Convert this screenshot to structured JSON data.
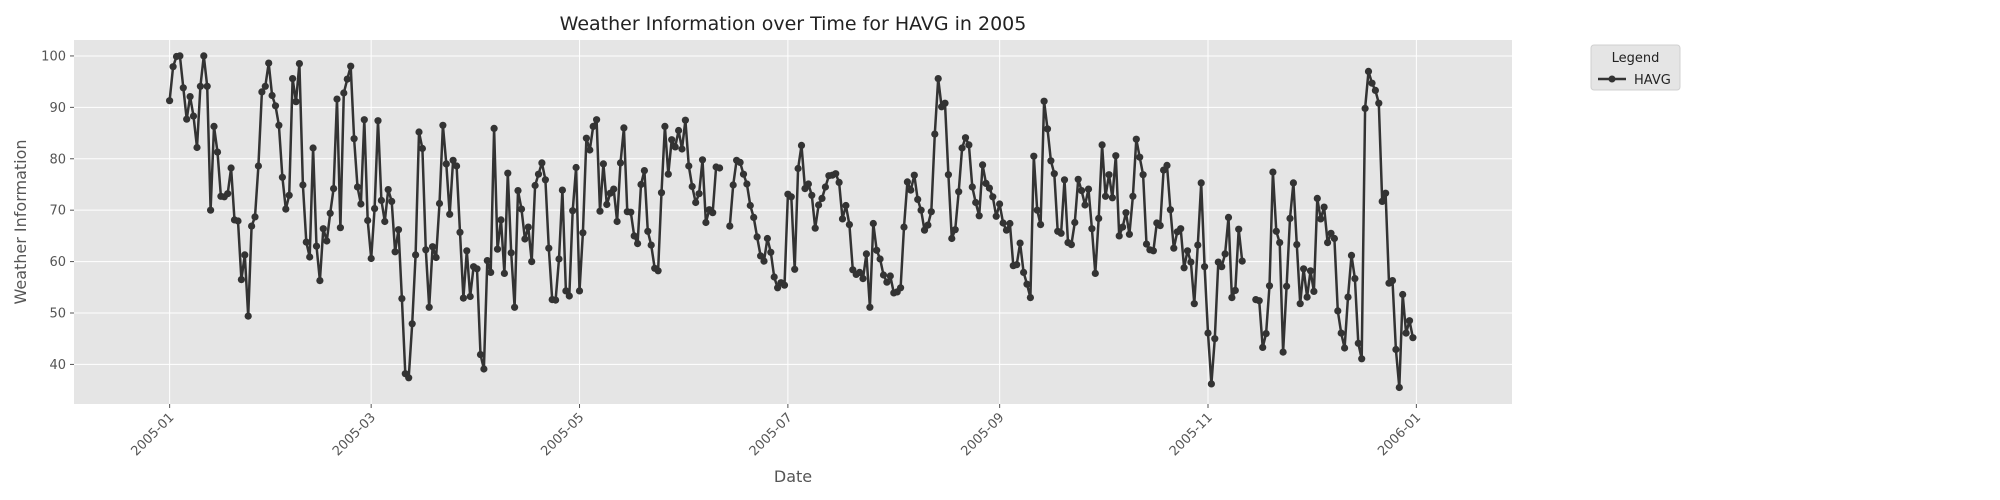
{
  "chart_data": {
    "type": "line",
    "title": "Weather Information over Time for HAVG in 2005",
    "xlabel": "Date",
    "ylabel": "Weather Information",
    "xlim": [
      "2004-12-04",
      "2006-01-29"
    ],
    "ylim": [
      32.3,
      103.1
    ],
    "x_ticks": [
      "2005-01",
      "2005-03",
      "2005-05",
      "2005-07",
      "2005-09",
      "2005-11",
      "2006-01"
    ],
    "y_ticks": [
      40,
      50,
      60,
      70,
      80,
      90,
      100
    ],
    "grid": true,
    "legend": {
      "title": "Legend",
      "placement": "outside-top-right"
    },
    "colors": {
      "line": "#333333",
      "plot_bg": "#e5e5e5",
      "grid": "#ffffff"
    },
    "series": [
      {
        "name": "HAVG",
        "start_date": "2005-01-01",
        "values": [
          91.3,
          97.9,
          99.9,
          100,
          93.8,
          87.7,
          92.1,
          88.3,
          82.2,
          94.1,
          100,
          94.1,
          70,
          86.3,
          81.3,
          72.7,
          72.6,
          73.2,
          78.2,
          68.1,
          67.9,
          56.5,
          61.3,
          49.4,
          66.9,
          68.7,
          78.6,
          93,
          94.1,
          98.6,
          92.3,
          90.3,
          86.5,
          76.4,
          70.2,
          72.9,
          95.6,
          91.1,
          98.5,
          74.9,
          63.8,
          60.9,
          82.1,
          63,
          56.3,
          66.4,
          64,
          69.4,
          74.2,
          91.6,
          66.6,
          92.8,
          95.5,
          98,
          83.9,
          74.5,
          71.2,
          87.6,
          68,
          60.6,
          70.3,
          87.4,
          71.9,
          67.8,
          74,
          71.7,
          61.9,
          66.2,
          52.8,
          38.2,
          37.4,
          47.9,
          61.3,
          85.2,
          82,
          62.3,
          51.1,
          62.9,
          60.8,
          71.3,
          86.5,
          79,
          69.2,
          79.7,
          78.6,
          65.7,
          52.9,
          62.1,
          53.2,
          59,
          58.6,
          41.9,
          39.1,
          60.2,
          57.9,
          85.9,
          62.4,
          68.1,
          57.7,
          77.2,
          61.7,
          51.1,
          73.8,
          70.2,
          64.4,
          66.7,
          60,
          74.8,
          77,
          79.2,
          75.9,
          62.6,
          52.6,
          52.5,
          60.5,
          73.9,
          54.3,
          53.3,
          69.9,
          78.3,
          54.3,
          65.6,
          84,
          81.7,
          86.3,
          87.6,
          69.8,
          79,
          71.1,
          73.3,
          74.1,
          67.8,
          79.2,
          86,
          69.7,
          69.6,
          65,
          63.5,
          75,
          77.7,
          65.9,
          63.2,
          58.7,
          58.2,
          73.4,
          86.3,
          77,
          83.7,
          82.3,
          85.5,
          81.9,
          87.5,
          78.6,
          74.6,
          71.5,
          73.2,
          79.8,
          67.6,
          70.1,
          69.5,
          78.4,
          78.2,
          null,
          null,
          66.9,
          74.9,
          79.7,
          79.3,
          77,
          75.1,
          70.9,
          68.6,
          64.8,
          61.1,
          60.1,
          64.5,
          61.8,
          57,
          54.9,
          55.9,
          55.4,
          73.1,
          72.6,
          58.5,
          78.1,
          82.6,
          74.2,
          75.1,
          72.9,
          66.5,
          71,
          72.3,
          74.5,
          76.7,
          76.8,
          77.1,
          75.4,
          68.3,
          70.9,
          67.2,
          58.4,
          57.5,
          57.9,
          56.7,
          61.5,
          51.1,
          67.4,
          62.2,
          60.5,
          57.4,
          56,
          57.2,
          53.9,
          54.1,
          54.9,
          66.7,
          75.5,
          73.9,
          76.8,
          72.1,
          70,
          66.1,
          67.1,
          69.7,
          84.8,
          95.6,
          90.1,
          90.8,
          76.9,
          64.5,
          66.2,
          73.6,
          82.1,
          84.1,
          82.7,
          74.5,
          71.5,
          68.9,
          78.8,
          75.2,
          74.3,
          72.6,
          68.8,
          71.2,
          67.5,
          66.1,
          67.4,
          59.2,
          59.4,
          63.6,
          57.9,
          55.6,
          53,
          80.5,
          70,
          67.2,
          91.2,
          85.8,
          79.6,
          77.1,
          65.9,
          65.5,
          75.9,
          63.7,
          63.3,
          67.6,
          76,
          73.8,
          71,
          74.1,
          66.4,
          57.7,
          68.4,
          82.7,
          72.7,
          76.9,
          72.4,
          80.6,
          65,
          66.7,
          69.5,
          65.3,
          72.7,
          83.8,
          80.3,
          76.9,
          63.4,
          62.3,
          62.1,
          67.5,
          67,
          77.8,
          78.7,
          70.1,
          62.6,
          65.8,
          66.4,
          58.8,
          62.1,
          59.9,
          51.8,
          63.2,
          75.3,
          59,
          46.1,
          36.2,
          45,
          59.9,
          59,
          61.5,
          68.6,
          53,
          54.4,
          66.3,
          60.1,
          null,
          null,
          null,
          52.6,
          52.4,
          43.3,
          46,
          55.3,
          77.4,
          65.9,
          63.7,
          42.4,
          55.2,
          68.4,
          75.3,
          63.3,
          51.8,
          58.6,
          53.1,
          58.2,
          54.2,
          72.3,
          68.3,
          70.6,
          63.7,
          65.5,
          64.5,
          50.4,
          46.1,
          43.2,
          53.1,
          61.2,
          56.7,
          44.1,
          41.1,
          89.8,
          97,
          94.7,
          93.3,
          90.8,
          71.7,
          73.3,
          55.8,
          56.3,
          42.9,
          35.5,
          53.6,
          46.1,
          48.5,
          45.2
        ]
      }
    ]
  }
}
